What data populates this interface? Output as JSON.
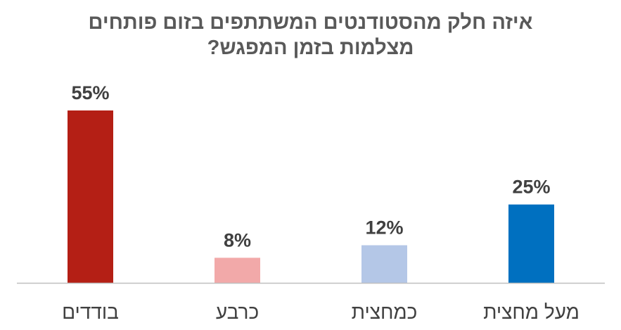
{
  "chart_data": {
    "type": "bar",
    "title_lines": [
      "איזה חלק מהסטודנטים המשתתפים בזום פותחים",
      "מצלמות בזמן המפגש?"
    ],
    "categories": [
      "בודדים",
      "כרבע",
      "כמחצית",
      "מעל מחצית"
    ],
    "values": [
      55,
      8,
      12,
      25
    ],
    "data_labels": [
      "55%",
      "8%",
      "12%",
      "25%"
    ],
    "colors": [
      "#B41F15",
      "#F2A9A9",
      "#B4C7E7",
      "#0070C0"
    ],
    "ylim": [
      0,
      55
    ],
    "grid": false,
    "legend": "none"
  }
}
